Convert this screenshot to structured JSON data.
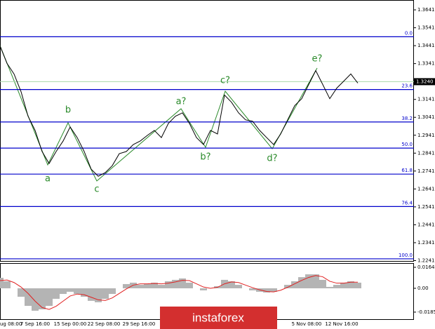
{
  "chart_data": [
    {
      "type": "line",
      "color": "#000000",
      "values": [
        1.344,
        1.3342,
        1.3283,
        1.3184,
        1.3047,
        1.2968,
        1.285,
        1.2783,
        1.285,
        1.2909,
        1.2987,
        1.2928,
        1.285,
        1.2751,
        1.2712,
        1.2732,
        1.2771,
        1.2838,
        1.285,
        1.2889,
        1.2909,
        1.294,
        1.2968,
        1.2928,
        1.3007,
        1.3047,
        1.3066,
        1.3007,
        1.2928,
        1.2889,
        1.2968,
        1.2948,
        1.3165,
        1.3125,
        1.3066,
        1.3027,
        1.3019,
        1.2968,
        1.2928,
        1.2889,
        1.2948,
        1.3027,
        1.3106,
        1.3145,
        1.3224,
        1.3302,
        1.3224,
        1.3145,
        1.3204,
        1.3243,
        1.3283,
        1.3232
      ],
      "ylim": [
        1.3696,
        1.2239
      ],
      "yticks": [
        1.3641,
        1.3541,
        1.3441,
        1.3341,
        1.3141,
        1.3041,
        1.2941,
        1.2841,
        1.2741,
        1.2641,
        1.2541,
        1.2441,
        1.2341,
        1.2241
      ],
      "current_price": {
        "value": 1.324,
        "label": "1.3240"
      },
      "levels": [
        {
          "label": "0.0",
          "value": 1.3491
        },
        {
          "label": "23.6",
          "value": 1.3196
        },
        {
          "label": "38.2",
          "value": 1.3015
        },
        {
          "label": "50.0",
          "value": 1.2869
        },
        {
          "label": "61.8",
          "value": 1.2724
        },
        {
          "label": "76.4",
          "value": 1.2543
        },
        {
          "label": "100.0",
          "value": 1.2251
        }
      ],
      "level_color": "#0000cc",
      "annotations": [
        "a",
        "b",
        "c",
        "a?",
        "b?",
        "c?",
        "d?",
        "e?"
      ],
      "annotation_color": "#2a8a2a",
      "x_labels": [
        "ug 08:00",
        "7 Sep 16:00",
        "15 Sep 00:00",
        "22 Sep 08:00",
        "29 Sep 16:00",
        "5 Nov 08:00",
        "12 Nov 16:00"
      ],
      "watermark": "instaforex"
    },
    {
      "type": "bar_line",
      "series": [
        {
          "type": "bar",
          "color": "#b4b4b4",
          "values": [
            0.0082,
            0.0055,
            0,
            -0.0066,
            -0.0137,
            -0.0175,
            -0.0164,
            -0.0137,
            -0.0082,
            -0.0044,
            -0.0027,
            -0.0044,
            -0.0066,
            -0.0098,
            -0.0109,
            -0.0082,
            -0.0044,
            0,
            0.0033,
            0.0044,
            0.0027,
            0.0033,
            0.0044,
            0.0027,
            0.0055,
            0.0066,
            0.0077,
            0.0044,
            0,
            -0.0016,
            0,
            0.0016,
            0.0066,
            0.0055,
            0.0027,
            0,
            -0.0016,
            -0.0027,
            -0.0033,
            -0.0027,
            0,
            0.0027,
            0.0055,
            0.0087,
            0.0109,
            0.0109,
            0.0066,
            0.0011,
            0.0027,
            0.0044,
            0.0055,
            0.0044
          ]
        },
        {
          "type": "line",
          "color": "#e02020",
          "values": [
            0.006,
            0.0065,
            0.0045,
            0.001,
            -0.004,
            -0.01,
            -0.015,
            -0.0165,
            -0.014,
            -0.01,
            -0.006,
            -0.0045,
            -0.005,
            -0.007,
            -0.009,
            -0.0095,
            -0.0075,
            -0.004,
            -0.0005,
            0.0025,
            0.0035,
            0.0035,
            0.0038,
            0.0035,
            0.004,
            0.005,
            0.0062,
            0.006,
            0.0035,
            0.001,
            0,
            0.0008,
            0.0035,
            0.005,
            0.0045,
            0.0025,
            0.0005,
            -0.0012,
            -0.0025,
            -0.0028,
            -0.0015,
            0.0008,
            0.0035,
            0.0062,
            0.0085,
            0.01,
            0.009,
            0.0055,
            0.004,
            0.004,
            0.0048,
            0.0048
          ]
        }
      ],
      "ylim": [
        0.0197,
        -0.0241
      ],
      "yticks": [
        0.0164,
        {
          "value": 0,
          "label": "0.00"
        },
        -0.01859
      ]
    }
  ]
}
